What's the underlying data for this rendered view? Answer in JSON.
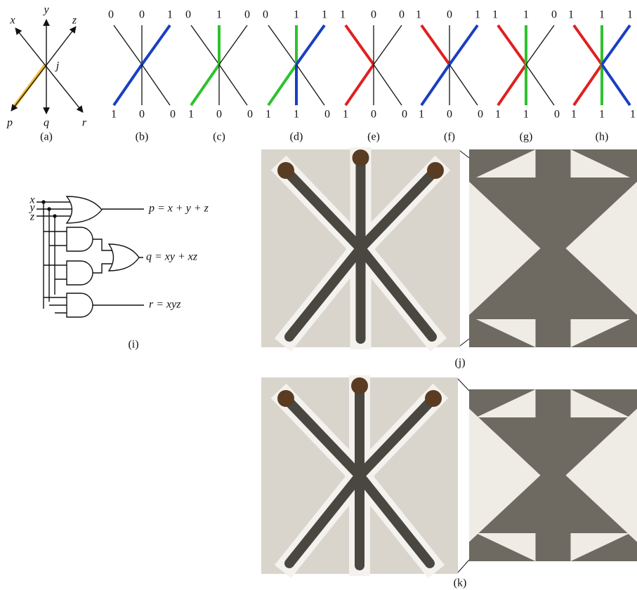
{
  "panel_a": {
    "inputs": [
      "x",
      "y",
      "z"
    ],
    "outputs": [
      "p",
      "q",
      "r"
    ],
    "junction": "j",
    "caption": "(a)"
  },
  "panels": [
    {
      "caption": "(b)",
      "top": [
        "0",
        "0",
        "1"
      ],
      "bottom": [
        "1",
        "0",
        "0"
      ]
    },
    {
      "caption": "(c)",
      "top": [
        "0",
        "1",
        "0"
      ],
      "bottom": [
        "1",
        "0",
        "0"
      ]
    },
    {
      "caption": "(d)",
      "top": [
        "0",
        "1",
        "1"
      ],
      "bottom": [
        "1",
        "1",
        "0"
      ]
    },
    {
      "caption": "(e)",
      "top": [
        "1",
        "0",
        "0"
      ],
      "bottom": [
        "1",
        "0",
        "0"
      ]
    },
    {
      "caption": "(f)",
      "top": [
        "1",
        "0",
        "1"
      ],
      "bottom": [
        "1",
        "0",
        "0"
      ]
    },
    {
      "caption": "(g)",
      "top": [
        "1",
        "1",
        "0"
      ],
      "bottom": [
        "1",
        "1",
        "0"
      ]
    },
    {
      "caption": "(h)",
      "top": [
        "1",
        "1",
        "1"
      ],
      "bottom": [
        "1",
        "1",
        "1"
      ]
    }
  ],
  "circuit": {
    "inputs": [
      "x",
      "y",
      "z"
    ],
    "equations": [
      "p = x + y + z",
      "q = xy + xz",
      "r = xyz"
    ],
    "caption": "(i)"
  },
  "photos": [
    {
      "caption": "(j)"
    },
    {
      "caption": "(k)"
    }
  ]
}
